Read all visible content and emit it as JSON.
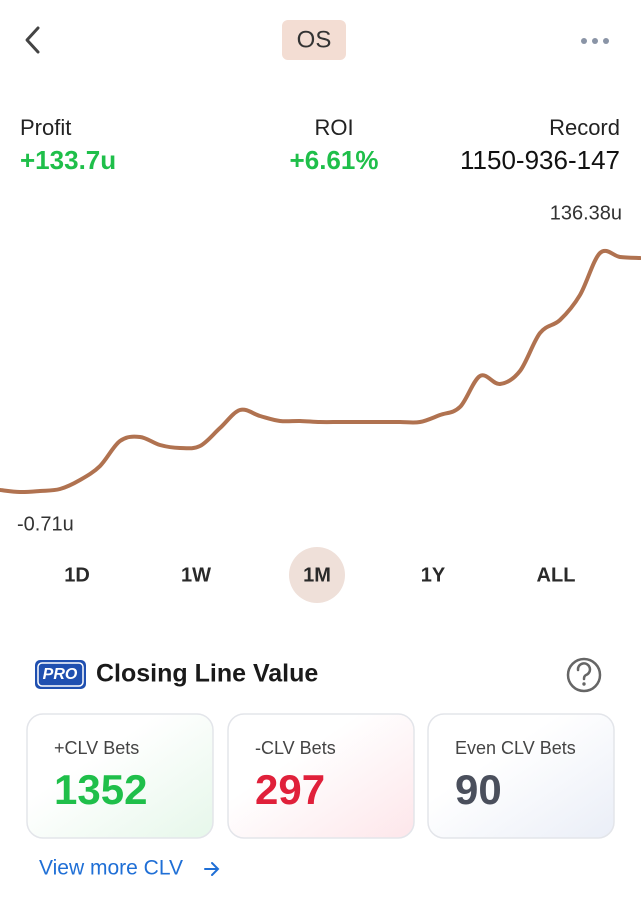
{
  "header": {
    "title": "OS"
  },
  "stats": [
    {
      "label": "Profit",
      "value": "+133.7u",
      "color": "#1fbf4a"
    },
    {
      "label": "ROI",
      "value": "+6.61%",
      "color": "#1fbf4a"
    },
    {
      "label": "Record",
      "value": "1150-936-147",
      "color": "#111111"
    }
  ],
  "chart_data": {
    "type": "line",
    "color": "#b07250",
    "values": [
      0.44,
      -0.71,
      -0.14,
      1.01,
      6.17,
      14.2,
      28.54,
      30.84,
      26.25,
      24.53,
      25.68,
      35.99,
      46.33,
      42.88,
      40.02,
      40.02,
      39.44,
      39.44,
      39.44,
      39.44,
      39.44,
      39.44,
      43.46,
      48.05,
      65.83,
      61.24,
      68.7,
      90.49,
      97.95,
      112.29,
      136.38,
      134.09,
      133.51
    ],
    "ylim": [
      -0.71,
      136.38
    ],
    "annotations": [
      {
        "value": 136.38,
        "label": "136.38u"
      },
      {
        "value": -0.71,
        "label": "-0.71u"
      }
    ]
  },
  "timeframes": {
    "options": [
      "1D",
      "1W",
      "1M",
      "1Y",
      "ALL"
    ],
    "selected": "1M"
  },
  "clv": {
    "badge": "PRO",
    "title": "Closing Line Value",
    "cards": [
      {
        "label": "+CLV Bets",
        "value": 1352,
        "color": "#1fbf4a",
        "tint": "#e6f7ea"
      },
      {
        "label": "-CLV Bets",
        "value": 297,
        "color": "#e0203a",
        "tint": "#fde6ea"
      },
      {
        "label": "Even CLV Bets",
        "value": 90,
        "color": "#4a4f5c",
        "tint": "#eaeef7"
      }
    ],
    "link": "View more CLV"
  }
}
